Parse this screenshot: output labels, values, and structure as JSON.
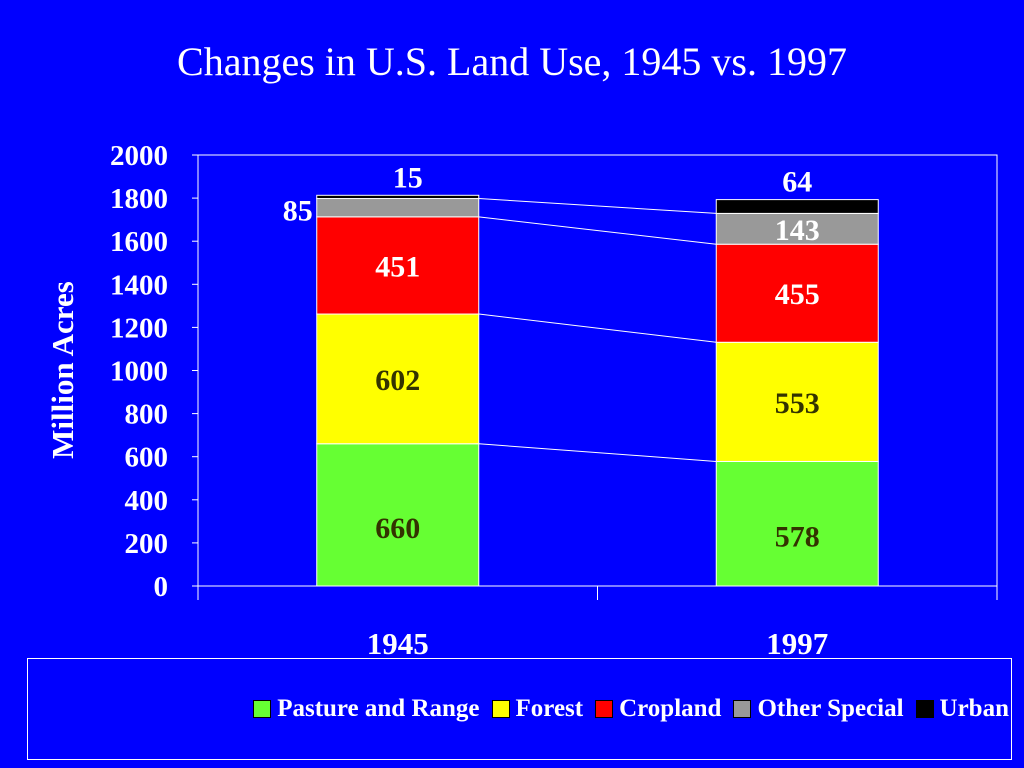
{
  "title": "Changes in U.S. Land Use, 1945 vs. 1997",
  "chart_data": {
    "type": "bar",
    "stacked": true,
    "title": "Changes in U.S. Land Use, 1945 vs. 1997",
    "xlabel": "",
    "ylabel": "Million Acres",
    "ylim": [
      0,
      2000
    ],
    "yticks": [
      0,
      200,
      400,
      600,
      800,
      1000,
      1200,
      1400,
      1600,
      1800,
      2000
    ],
    "categories": [
      "1945",
      "1997"
    ],
    "series": [
      {
        "name": "Pasture and Range",
        "values": [
          660,
          578
        ],
        "color": "#66FF33"
      },
      {
        "name": "Forest",
        "values": [
          602,
          553
        ],
        "color": "#FFFF00"
      },
      {
        "name": "Cropland",
        "values": [
          451,
          455
        ],
        "color": "#FF0000"
      },
      {
        "name": "Other Special",
        "values": [
          85,
          143
        ],
        "color": "#999999"
      },
      {
        "name": "Urban",
        "values": [
          15,
          64
        ],
        "color": "#000000"
      }
    ],
    "grid": false,
    "legend_position": "bottom",
    "series_connector_lines": true
  }
}
